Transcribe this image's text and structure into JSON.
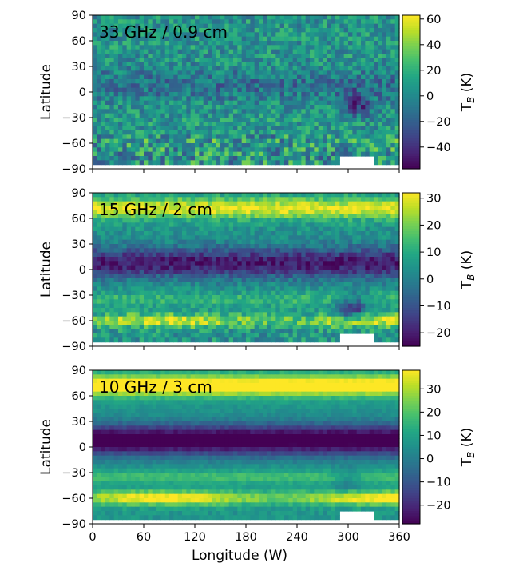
{
  "chart_data": [
    {
      "type": "heatmap",
      "annotation": "33 GHz / 0.9 cm",
      "ylabel": "Latitude",
      "xlim": [
        0,
        360
      ],
      "ylim": [
        -90,
        90
      ],
      "yticks": [
        "90",
        "60",
        "30",
        "0",
        "−30",
        "−60",
        "−90"
      ],
      "yticks_values": [
        90,
        60,
        30,
        0,
        -30,
        -60,
        -90
      ],
      "colorbar": {
        "label_main": "T",
        "label_sub": "B",
        "label_unit": " (K)",
        "range": [
          -57,
          63
        ],
        "ticks": [
          60,
          40,
          20,
          0,
          -20,
          -40
        ],
        "tick_labels": [
          "60",
          "40",
          "20",
          "0",
          "−20",
          "−40"
        ]
      },
      "features": {
        "equatorial_band": 0.15,
        "north_high": 0.0,
        "south_band": 0.05,
        "noise": 0.35,
        "cold_spot_lon": 310,
        "cold_spot_lat": -15,
        "cold_spot_strength": 0.35
      }
    },
    {
      "type": "heatmap",
      "annotation": "15 GHz / 2 cm",
      "ylabel": "Latitude",
      "xlim": [
        0,
        360
      ],
      "ylim": [
        -90,
        90
      ],
      "yticks": [
        "90",
        "60",
        "30",
        "0",
        "−30",
        "−60",
        "−90"
      ],
      "yticks_values": [
        90,
        60,
        30,
        0,
        -30,
        -60,
        -90
      ],
      "colorbar": {
        "label_main": "T",
        "label_sub": "B",
        "label_unit": " (K)",
        "range": [
          -25,
          32
        ],
        "ticks": [
          30,
          20,
          10,
          0,
          -10,
          -20
        ],
        "tick_labels": [
          "30",
          "20",
          "10",
          "0",
          "−10",
          "−20"
        ]
      },
      "features": {
        "equatorial_band": 0.45,
        "north_high": 0.45,
        "south_band": 0.35,
        "noise": 0.2,
        "cold_spot_lon": 305,
        "cold_spot_lat": -45,
        "cold_spot_strength": 0.4
      }
    },
    {
      "type": "heatmap",
      "annotation": "10 GHz / 3 cm",
      "ylabel": "Latitude",
      "xlabel": "Longitude (W)",
      "xlim": [
        0,
        360
      ],
      "ylim": [
        -90,
        90
      ],
      "xticks": [
        "0",
        "60",
        "120",
        "180",
        "240",
        "300",
        "360"
      ],
      "xticks_values": [
        0,
        60,
        120,
        180,
        240,
        300,
        360
      ],
      "yticks": [
        "90",
        "60",
        "30",
        "0",
        "−30",
        "−60",
        "−90"
      ],
      "yticks_values": [
        90,
        60,
        30,
        0,
        -30,
        -60,
        -90
      ],
      "colorbar": {
        "label_main": "T",
        "label_sub": "B",
        "label_unit": " (K)",
        "range": [
          -28,
          38
        ],
        "ticks": [
          30,
          20,
          10,
          0,
          -10,
          -20
        ],
        "tick_labels": [
          "30",
          "20",
          "10",
          "0",
          "−10",
          "−20"
        ]
      },
      "features": {
        "equatorial_band": 0.6,
        "north_high": 0.6,
        "south_band": 0.45,
        "noise": 0.08,
        "cold_spot_lon": 300,
        "cold_spot_lat": -40,
        "cold_spot_strength": 0.15
      }
    }
  ]
}
